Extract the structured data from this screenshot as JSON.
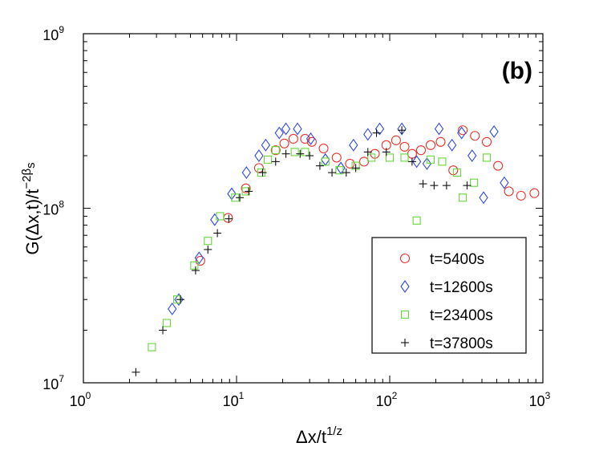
{
  "chart_data": {
    "type": "scatter",
    "panel_label": "(b)",
    "xscale": "log",
    "yscale": "log",
    "xlim": [
      1,
      1000
    ],
    "ylim": [
      10000000,
      1000000000
    ],
    "xlabel": {
      "main": "Δx/t",
      "sup": "1/z"
    },
    "ylabel": {
      "main": "G(Δx,t)/t",
      "sup": "−2β",
      "sub": "s"
    },
    "xticks": [
      {
        "value": 1,
        "base": "10",
        "exp": "0"
      },
      {
        "value": 10,
        "base": "10",
        "exp": "1"
      },
      {
        "value": 100,
        "base": "10",
        "exp": "2"
      },
      {
        "value": 1000,
        "base": "10",
        "exp": "3"
      }
    ],
    "yticks": [
      {
        "value": 10000000,
        "base": "10",
        "exp": "7"
      },
      {
        "value": 100000000,
        "base": "10",
        "exp": "8"
      },
      {
        "value": 1000000000,
        "base": "10",
        "exp": "9"
      }
    ],
    "legend_position": "bottom-right",
    "series": [
      {
        "name": "t=5400s",
        "marker": "circle",
        "color": "#e8332b",
        "points": [
          [
            5.8,
            50000000
          ],
          [
            8.8,
            88000000
          ],
          [
            11.5,
            130000000
          ],
          [
            14,
            170000000
          ],
          [
            18,
            215000000
          ],
          [
            20.5,
            235000000
          ],
          [
            23.5,
            250000000
          ],
          [
            28,
            250000000
          ],
          [
            31,
            240000000
          ],
          [
            37,
            220000000
          ],
          [
            45,
            195000000
          ],
          [
            55,
            180000000
          ],
          [
            68,
            185000000
          ],
          [
            80,
            205000000
          ],
          [
            95,
            230000000
          ],
          [
            110,
            245000000
          ],
          [
            125,
            225000000
          ],
          [
            140,
            205000000
          ],
          [
            160,
            215000000
          ],
          [
            185,
            230000000
          ],
          [
            215,
            240000000
          ],
          [
            260,
            165000000
          ],
          [
            300,
            280000000
          ],
          [
            360,
            260000000
          ],
          [
            430,
            240000000
          ],
          [
            510,
            175000000
          ],
          [
            600,
            125000000
          ],
          [
            720,
            118000000
          ],
          [
            880,
            122000000
          ]
        ]
      },
      {
        "name": "t=12600s",
        "marker": "diamond",
        "color": "#3249e0",
        "points": [
          [
            3.8,
            26500000
          ],
          [
            4.2,
            30000000
          ],
          [
            5.7,
            52000000
          ],
          [
            7.2,
            86000000
          ],
          [
            9.3,
            121000000
          ],
          [
            11.6,
            160000000
          ],
          [
            14,
            200000000
          ],
          [
            15.5,
            230000000
          ],
          [
            19,
            270000000
          ],
          [
            21,
            285000000
          ],
          [
            25,
            285000000
          ],
          [
            30.5,
            250000000
          ],
          [
            38,
            190000000
          ],
          [
            48,
            170000000
          ],
          [
            58,
            230000000
          ],
          [
            72,
            265000000
          ],
          [
            86,
            285000000
          ],
          [
            120,
            285000000
          ],
          [
            150,
            185000000
          ],
          [
            175,
            180000000
          ],
          [
            210,
            285000000
          ],
          [
            255,
            230000000
          ],
          [
            295,
            270000000
          ],
          [
            345,
            200000000
          ],
          [
            410,
            115000000
          ],
          [
            480,
            275000000
          ],
          [
            560,
            140000000
          ]
        ]
      },
      {
        "name": "t=23400s",
        "marker": "square",
        "color": "#66d63a",
        "points": [
          [
            2.8,
            16000000
          ],
          [
            3.5,
            22000000
          ],
          [
            4.1,
            30000000
          ],
          [
            5.3,
            47000000
          ],
          [
            6.5,
            65000000
          ],
          [
            7.8,
            90000000
          ],
          [
            9.8,
            115000000
          ],
          [
            11.5,
            125000000
          ],
          [
            14.5,
            160000000
          ],
          [
            16,
            190000000
          ],
          [
            18,
            215000000
          ],
          [
            24,
            210000000
          ],
          [
            28,
            210000000
          ],
          [
            38,
            185000000
          ],
          [
            47,
            165000000
          ],
          [
            60,
            175000000
          ],
          [
            76,
            195000000
          ],
          [
            100,
            195000000
          ],
          [
            125,
            195000000
          ],
          [
            150,
            85000000
          ],
          [
            185,
            190000000
          ],
          [
            220,
            185000000
          ],
          [
            275,
            160000000
          ],
          [
            300,
            115000000
          ],
          [
            355,
            140000000
          ],
          [
            430,
            195000000
          ]
        ]
      },
      {
        "name": "t=37800s",
        "marker": "plus",
        "color": "#111111",
        "points": [
          [
            2.2,
            11500000
          ],
          [
            3.3,
            20000000
          ],
          [
            4.3,
            30000000
          ],
          [
            5.4,
            44000000
          ],
          [
            6.5,
            58000000
          ],
          [
            7.5,
            72000000
          ],
          [
            8.9,
            87000000
          ],
          [
            10.5,
            115000000
          ],
          [
            12,
            125000000
          ],
          [
            14.8,
            160000000
          ],
          [
            18,
            185000000
          ],
          [
            21,
            205000000
          ],
          [
            26,
            205000000
          ],
          [
            30,
            200000000
          ],
          [
            35,
            175000000
          ],
          [
            42,
            160000000
          ],
          [
            52,
            160000000
          ],
          [
            60,
            170000000
          ],
          [
            72,
            210000000
          ],
          [
            82,
            270000000
          ],
          [
            95,
            210000000
          ],
          [
            120,
            280000000
          ],
          [
            140,
            185000000
          ],
          [
            165,
            138000000
          ],
          [
            195,
            135000000
          ],
          [
            235,
            135000000
          ],
          [
            320,
            135000000
          ]
        ]
      }
    ]
  }
}
